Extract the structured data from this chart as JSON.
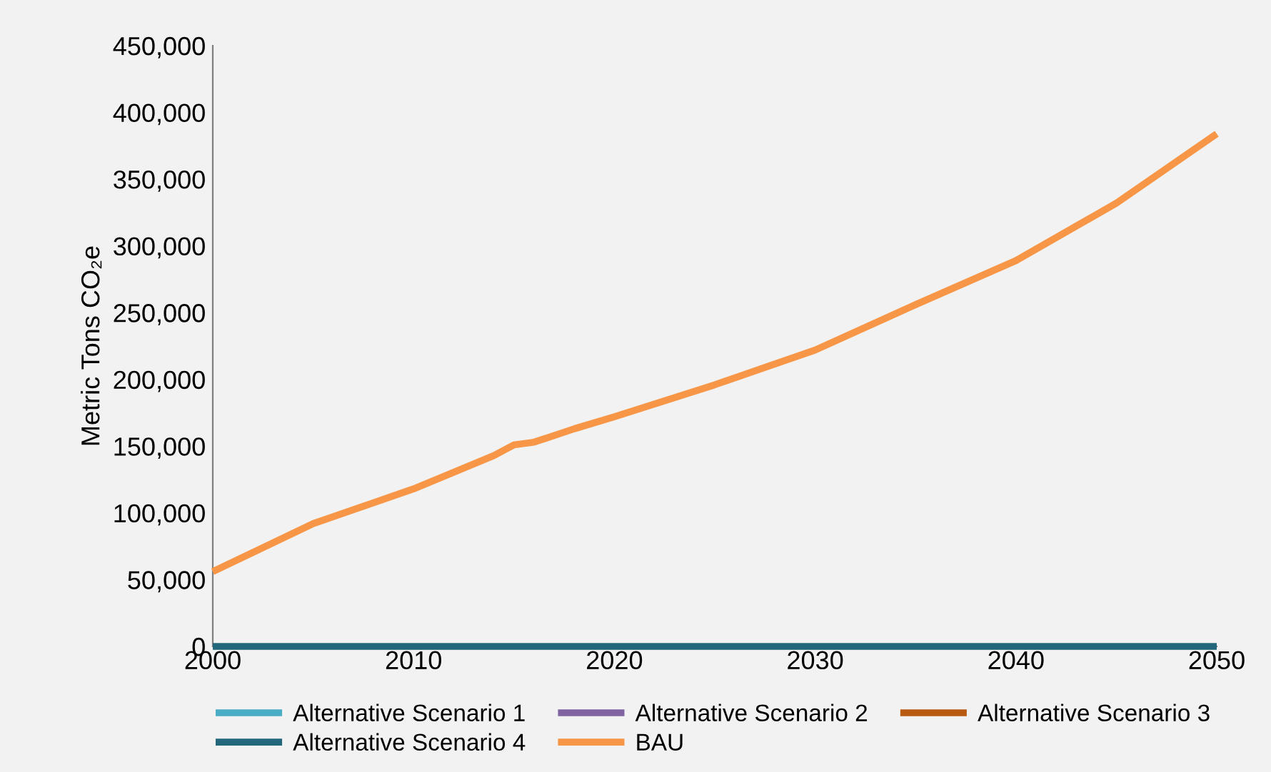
{
  "chart_data": {
    "type": "line",
    "ylabel": "Metric Tons CO₂e",
    "xlim": [
      2000,
      2050
    ],
    "xticks": [
      2000,
      2010,
      2020,
      2030,
      2040,
      2050
    ],
    "ylim": [
      0,
      450000
    ],
    "yticks": [
      {
        "value": 0,
        "label": "0"
      },
      {
        "value": 50000,
        "label": "50,000"
      },
      {
        "value": 100000,
        "label": "100,000"
      },
      {
        "value": 150000,
        "label": "150,000"
      },
      {
        "value": 200000,
        "label": "200,000"
      },
      {
        "value": 250000,
        "label": "250,000"
      },
      {
        "value": 300000,
        "label": "300,000"
      },
      {
        "value": 350000,
        "label": "350,000"
      },
      {
        "value": 400000,
        "label": "400,000"
      },
      {
        "value": 450000,
        "label": "450,000"
      }
    ],
    "grid": false,
    "legend": "bottom",
    "marker": "none",
    "line_style": "solid",
    "series": [
      {
        "name": "Alternative Scenario 1",
        "color": "#4bacc6"
      },
      {
        "name": "Alternative Scenario 2",
        "color": "#8064a2"
      },
      {
        "name": "Alternative Scenario 3",
        "color": "#b85a12"
      },
      {
        "name": "Alternative Scenario 4",
        "color": "#22677a",
        "x": [
          2000,
          2050
        ],
        "values": [
          0,
          0
        ]
      },
      {
        "name": "BAU",
        "color": "#f79646",
        "x": [
          2000,
          2005,
          2010,
          2014,
          2015,
          2016,
          2018,
          2020,
          2025,
          2030,
          2035,
          2040,
          2045,
          2050
        ],
        "values": [
          56000,
          92000,
          118000,
          143000,
          151000,
          153000,
          163000,
          172000,
          196000,
          222000,
          256000,
          289000,
          332000,
          384000
        ]
      }
    ]
  }
}
